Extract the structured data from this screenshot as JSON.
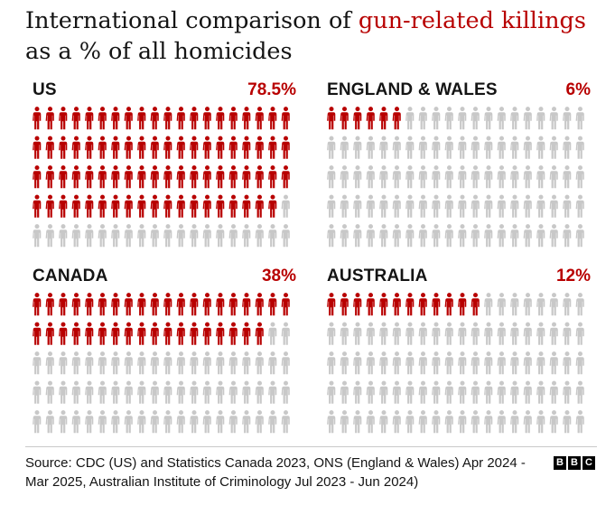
{
  "title": {
    "part1": "International comparison of ",
    "highlight": "gun-related killings",
    "part2": "as a % of all homicides"
  },
  "chart_data": {
    "type": "pictogram",
    "title": "International comparison of gun-related killings as a % of all homicides",
    "unit": "% of all homicides",
    "icons_per_panel": 100,
    "highlight_color": "#b80000",
    "base_color": "#c8c8c8",
    "series": [
      {
        "name": "US",
        "label": "78.5%",
        "value": 78.5
      },
      {
        "name": "ENGLAND & WALES",
        "label": "6%",
        "value": 6
      },
      {
        "name": "CANADA",
        "label": "38%",
        "value": 38
      },
      {
        "name": "AUSTRALIA",
        "label": "12%",
        "value": 12
      }
    ]
  },
  "source": "Source: CDC (US) and Statistics Canada 2023, ONS (England & Wales) Apr 2024 - Mar 2025, Australian Institute of Criminology Jul 2023 - Jun 2024)",
  "logo": {
    "letters": [
      "B",
      "B",
      "C"
    ]
  }
}
